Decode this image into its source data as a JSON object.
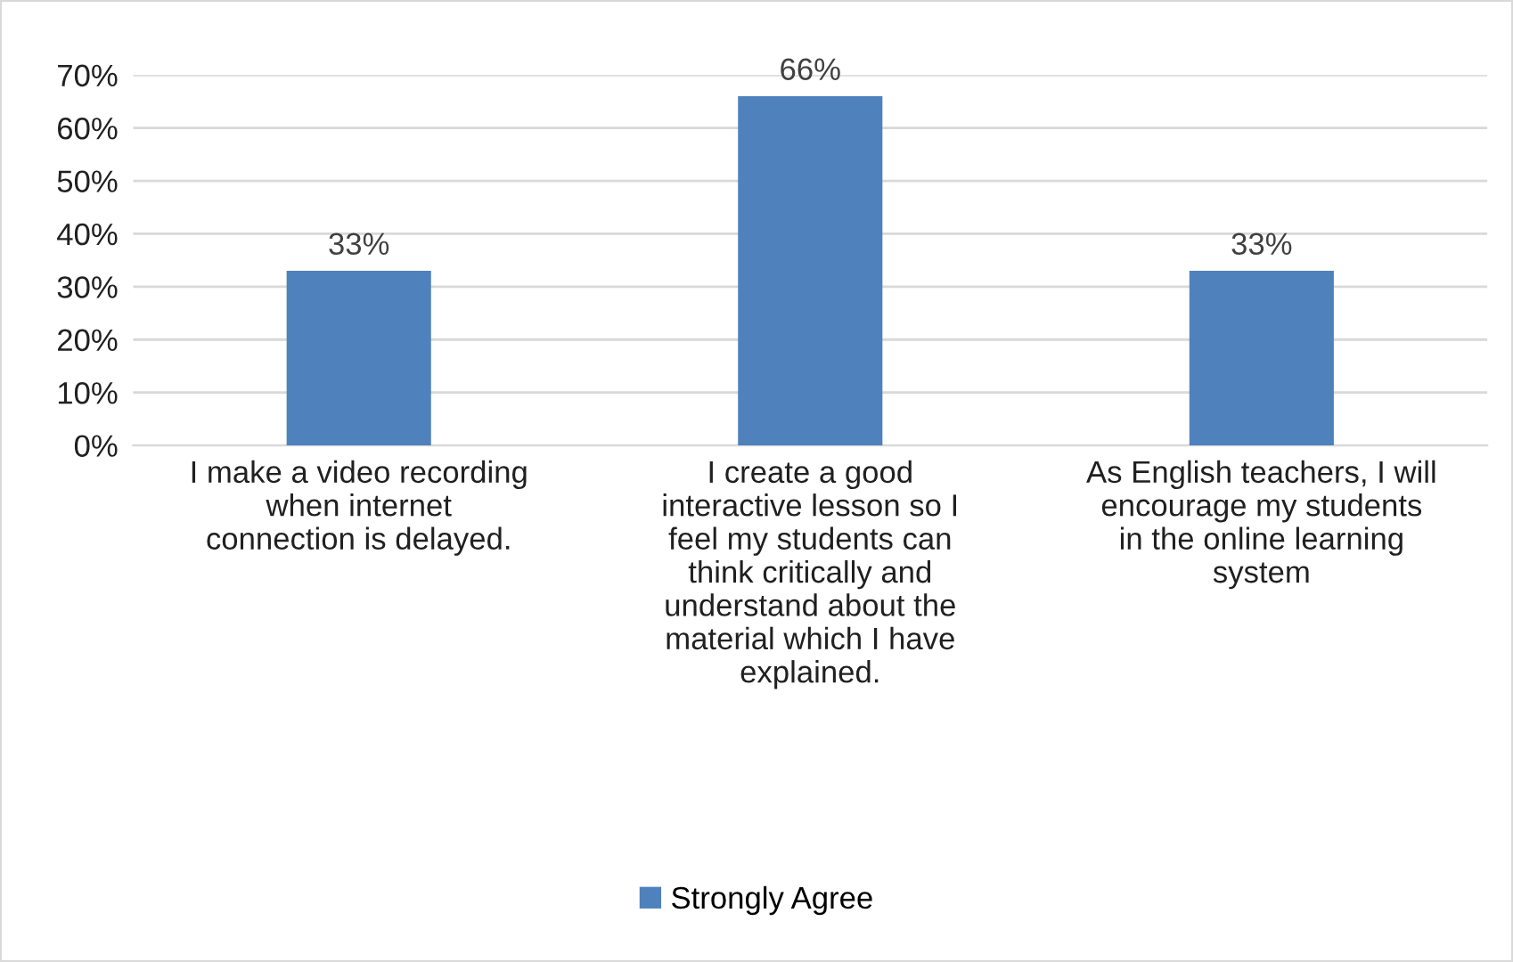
{
  "chart_data": {
    "type": "bar",
    "categories": [
      "I make a video recording\nwhen internet\nconnection is delayed.",
      "I create a good\ninteractive lesson so I\nfeel my students can\nthink critically and\nunderstand about the\nmaterial which I have\nexplained.",
      "As English teachers, I will\nencourage my students\nin the online learning\nsystem"
    ],
    "series": [
      {
        "name": "Strongly Agree",
        "color": "#4f81bd",
        "values": [
          33,
          66,
          33
        ],
        "value_labels": [
          "33%",
          "66%",
          "33%"
        ]
      }
    ],
    "ylim": [
      0,
      70
    ],
    "yticks": [
      {
        "value": 0,
        "label": "0%"
      },
      {
        "value": 10,
        "label": "10%"
      },
      {
        "value": 20,
        "label": "20%"
      },
      {
        "value": 30,
        "label": "30%"
      },
      {
        "value": 40,
        "label": "40%"
      },
      {
        "value": 50,
        "label": "50%"
      },
      {
        "value": 60,
        "label": "60%"
      },
      {
        "value": 70,
        "label": "70%"
      }
    ],
    "grid": "y",
    "legend": "bottom"
  }
}
